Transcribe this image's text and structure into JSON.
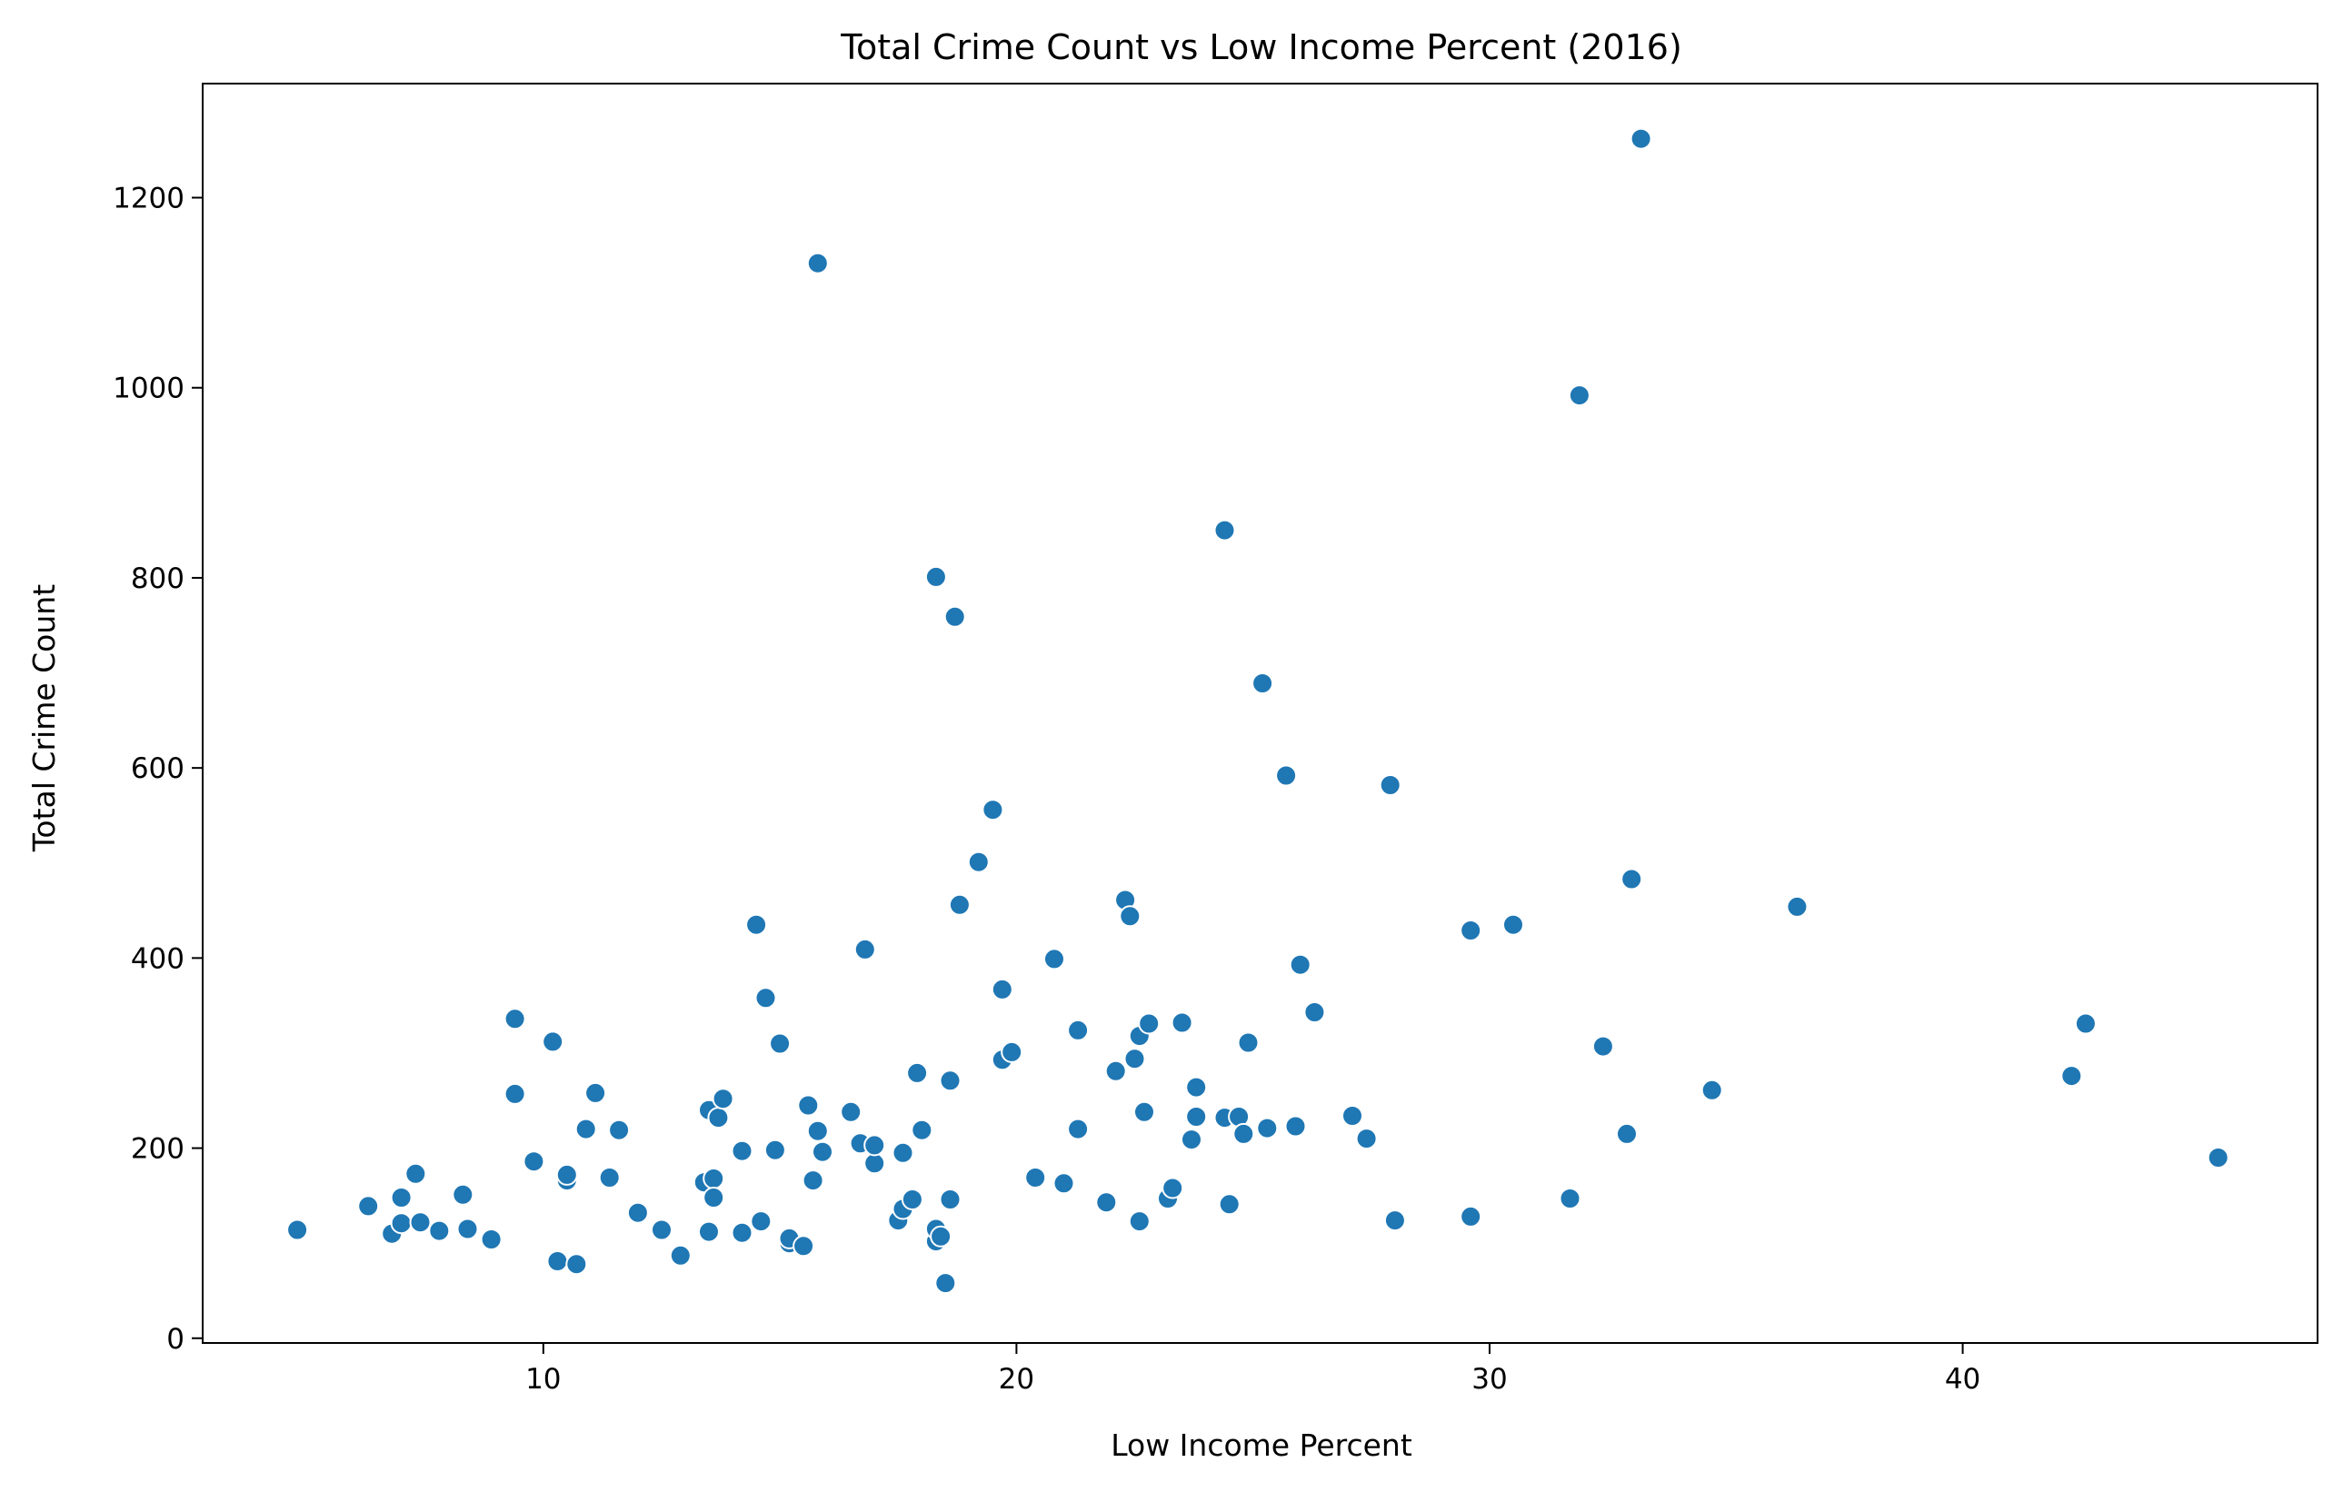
{
  "chart_data": {
    "type": "scatter",
    "title": "Total Crime Count vs Low Income Percent (2016)",
    "xlabel": "Low Income Percent",
    "ylabel": "Total Crime Count",
    "xlim": [
      2.8,
      47.5
    ],
    "ylim": [
      -5,
      1320
    ],
    "xticks": [
      10,
      20,
      30,
      40
    ],
    "yticks": [
      0,
      200,
      400,
      600,
      800,
      1000,
      1200
    ],
    "grid": false,
    "legend": "none",
    "marker_color": "#1f77b4",
    "points": [
      [
        4.8,
        114
      ],
      [
        6.3,
        139
      ],
      [
        6.8,
        110
      ],
      [
        7.0,
        148
      ],
      [
        7.0,
        121
      ],
      [
        7.3,
        173
      ],
      [
        7.4,
        122
      ],
      [
        7.8,
        113
      ],
      [
        8.3,
        151
      ],
      [
        8.4,
        115
      ],
      [
        8.9,
        104
      ],
      [
        9.4,
        336
      ],
      [
        9.4,
        257
      ],
      [
        9.8,
        186
      ],
      [
        10.2,
        312
      ],
      [
        10.3,
        81
      ],
      [
        10.5,
        166
      ],
      [
        10.5,
        172
      ],
      [
        10.7,
        78
      ],
      [
        10.9,
        220
      ],
      [
        11.1,
        258
      ],
      [
        11.4,
        169
      ],
      [
        11.6,
        219
      ],
      [
        12.0,
        132
      ],
      [
        12.5,
        114
      ],
      [
        12.9,
        87
      ],
      [
        13.4,
        164
      ],
      [
        13.5,
        112
      ],
      [
        13.5,
        240
      ],
      [
        13.6,
        168
      ],
      [
        13.6,
        148
      ],
      [
        13.7,
        232
      ],
      [
        13.8,
        252
      ],
      [
        14.2,
        197
      ],
      [
        14.2,
        111
      ],
      [
        14.5,
        435
      ],
      [
        14.6,
        123
      ],
      [
        14.7,
        358
      ],
      [
        14.9,
        198
      ],
      [
        15.0,
        310
      ],
      [
        15.2,
        100
      ],
      [
        15.2,
        105
      ],
      [
        15.5,
        97
      ],
      [
        15.6,
        245
      ],
      [
        15.7,
        166
      ],
      [
        15.8,
        1131
      ],
      [
        15.8,
        218
      ],
      [
        15.9,
        196
      ],
      [
        16.5,
        238
      ],
      [
        16.7,
        205
      ],
      [
        16.8,
        409
      ],
      [
        17.0,
        184
      ],
      [
        17.0,
        203
      ],
      [
        17.5,
        124
      ],
      [
        17.6,
        195
      ],
      [
        17.6,
        136
      ],
      [
        17.8,
        146
      ],
      [
        17.9,
        279
      ],
      [
        18.0,
        219
      ],
      [
        18.3,
        801
      ],
      [
        18.3,
        102
      ],
      [
        18.3,
        115
      ],
      [
        18.4,
        107
      ],
      [
        18.5,
        58
      ],
      [
        18.6,
        271
      ],
      [
        18.6,
        146
      ],
      [
        18.7,
        759
      ],
      [
        18.8,
        456
      ],
      [
        19.2,
        501
      ],
      [
        19.5,
        556
      ],
      [
        19.7,
        367
      ],
      [
        19.7,
        293
      ],
      [
        19.9,
        301
      ],
      [
        20.4,
        169
      ],
      [
        20.8,
        399
      ],
      [
        21.0,
        163
      ],
      [
        21.3,
        324
      ],
      [
        21.3,
        220
      ],
      [
        21.9,
        143
      ],
      [
        22.1,
        281
      ],
      [
        22.3,
        461
      ],
      [
        22.4,
        444
      ],
      [
        22.5,
        294
      ],
      [
        22.6,
        318
      ],
      [
        22.6,
        123
      ],
      [
        22.7,
        238
      ],
      [
        22.8,
        331
      ],
      [
        23.2,
        147
      ],
      [
        23.3,
        158
      ],
      [
        23.5,
        332
      ],
      [
        23.7,
        209
      ],
      [
        23.8,
        264
      ],
      [
        23.8,
        233
      ],
      [
        24.4,
        850
      ],
      [
        24.4,
        232
      ],
      [
        24.5,
        141
      ],
      [
        24.7,
        233
      ],
      [
        24.8,
        215
      ],
      [
        24.9,
        311
      ],
      [
        25.2,
        689
      ],
      [
        25.3,
        221
      ],
      [
        25.7,
        592
      ],
      [
        25.9,
        223
      ],
      [
        26.0,
        393
      ],
      [
        26.3,
        343
      ],
      [
        27.1,
        234
      ],
      [
        27.4,
        210
      ],
      [
        27.9,
        582
      ],
      [
        28.0,
        124
      ],
      [
        29.6,
        429
      ],
      [
        29.6,
        128
      ],
      [
        30.5,
        435
      ],
      [
        31.7,
        147
      ],
      [
        31.9,
        992
      ],
      [
        32.4,
        307
      ],
      [
        32.9,
        215
      ],
      [
        33.0,
        483
      ],
      [
        33.2,
        1262
      ],
      [
        34.7,
        261
      ],
      [
        36.5,
        454
      ],
      [
        42.3,
        276
      ],
      [
        42.6,
        331
      ],
      [
        45.4,
        190
      ]
    ]
  }
}
